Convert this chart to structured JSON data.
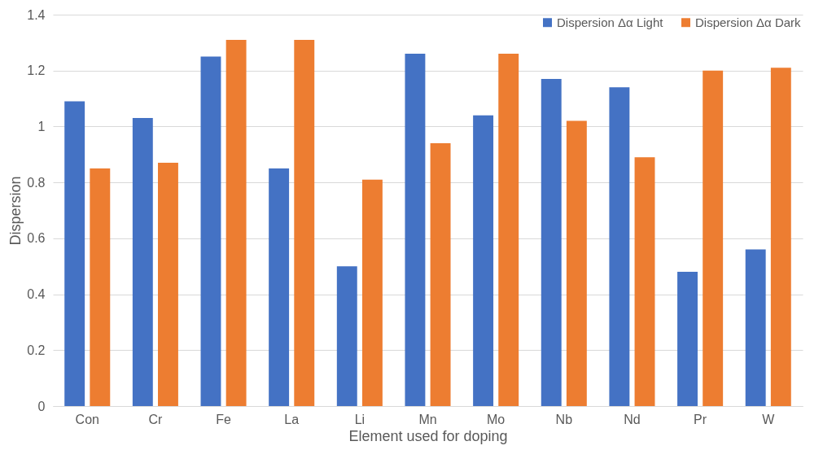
{
  "chart_data": {
    "type": "bar",
    "xlabel": "Element used for doping",
    "ylabel": "Dispersion",
    "categories": [
      "Con",
      "Cr",
      "Fe",
      "La",
      "Li",
      "Mn",
      "Mo",
      "Nb",
      "Nd",
      "Pr",
      "W"
    ],
    "series": [
      {
        "name": "Dispersion Δα Light",
        "color": "#4472c4",
        "values": [
          1.09,
          1.03,
          1.25,
          0.85,
          0.5,
          1.26,
          1.04,
          1.17,
          1.14,
          0.48,
          0.56
        ]
      },
      {
        "name": "Dispersion Δα Dark",
        "color": "#ed7d31",
        "values": [
          0.85,
          0.87,
          1.31,
          1.31,
          0.81,
          0.94,
          1.26,
          1.02,
          0.89,
          1.2,
          1.21
        ]
      }
    ],
    "ylim": [
      0,
      1.4
    ],
    "yticks": [
      0,
      0.2,
      0.4,
      0.6,
      0.8,
      1,
      1.2,
      1.4
    ],
    "grid": "y",
    "legend": "top right"
  }
}
